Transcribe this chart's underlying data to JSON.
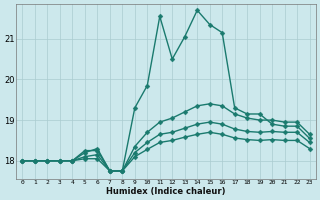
{
  "xlabel": "Humidex (Indice chaleur)",
  "background_color": "#cce8ec",
  "grid_color": "#aaccd0",
  "line_color": "#1a7a6e",
  "xlim": [
    -0.5,
    23.5
  ],
  "ylim": [
    17.55,
    21.85
  ],
  "yticks": [
    18,
    19,
    20,
    21
  ],
  "xticks": [
    0,
    1,
    2,
    3,
    4,
    5,
    6,
    7,
    8,
    9,
    10,
    11,
    12,
    13,
    14,
    15,
    16,
    17,
    18,
    19,
    20,
    21,
    22,
    23
  ],
  "series": [
    [
      18.0,
      18.0,
      18.0,
      18.0,
      18.0,
      18.25,
      18.25,
      17.75,
      17.75,
      19.3,
      19.85,
      21.55,
      20.5,
      21.05,
      21.7,
      21.35,
      21.15,
      19.3,
      19.15,
      19.15,
      18.9,
      18.85,
      18.85,
      18.55
    ],
    [
      18.0,
      18.0,
      18.0,
      18.0,
      18.0,
      18.2,
      18.3,
      17.75,
      17.75,
      18.35,
      18.7,
      18.95,
      19.05,
      19.2,
      19.35,
      19.4,
      19.35,
      19.15,
      19.05,
      19.0,
      19.0,
      18.95,
      18.95,
      18.65
    ],
    [
      18.0,
      18.0,
      18.0,
      18.0,
      18.0,
      18.1,
      18.15,
      17.75,
      17.75,
      18.2,
      18.45,
      18.65,
      18.7,
      18.8,
      18.9,
      18.95,
      18.9,
      18.78,
      18.72,
      18.7,
      18.72,
      18.7,
      18.7,
      18.45
    ],
    [
      18.0,
      18.0,
      18.0,
      18.0,
      18.0,
      18.05,
      18.05,
      17.75,
      17.75,
      18.1,
      18.28,
      18.45,
      18.5,
      18.58,
      18.65,
      18.7,
      18.65,
      18.56,
      18.52,
      18.5,
      18.52,
      18.5,
      18.5,
      18.3
    ]
  ],
  "marker_size": 2.5,
  "line_width": 1.0
}
